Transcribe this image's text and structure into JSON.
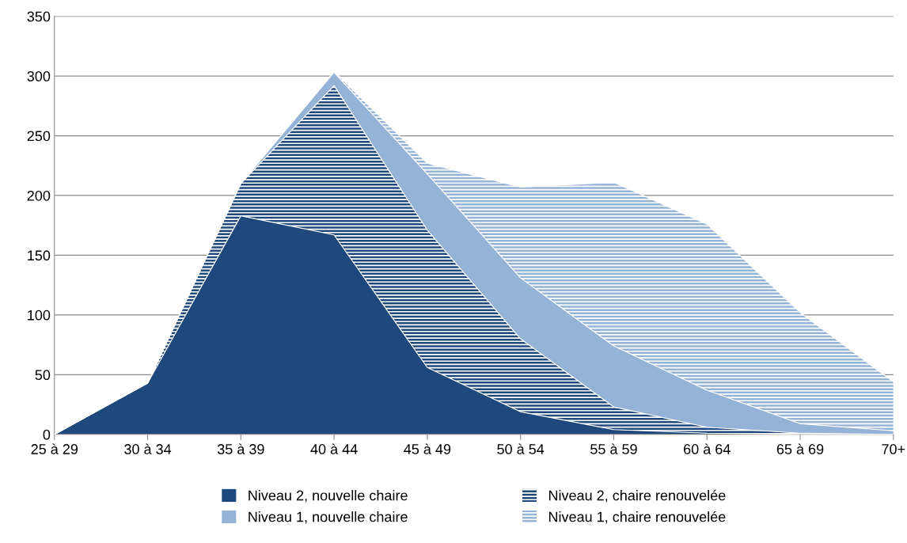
{
  "chart_data": {
    "type": "area",
    "stacked": true,
    "categories": [
      "25 à 29",
      "30 à 34",
      "35 à 39",
      "40 à 44",
      "45 à 49",
      "50 à 54",
      "55 à 59",
      "60 à 64",
      "65 à 69",
      "70+"
    ],
    "series": [
      {
        "name": "Niveau 2, nouvelle chaire",
        "color": "#1f497d",
        "values": [
          0,
          43,
          183,
          167,
          56,
          19,
          4,
          1,
          0,
          0
        ]
      },
      {
        "name": "Niveau 2, chaire renouvelée",
        "color": "#1f497d",
        "values": [
          0,
          0,
          27,
          125,
          115,
          61,
          19,
          5,
          1,
          0
        ]
      },
      {
        "name": "Niveau 1, nouvelle chaire",
        "color": "#95b3d7",
        "values": [
          0,
          0,
          0,
          11,
          47,
          51,
          51,
          31,
          8,
          3
        ]
      },
      {
        "name": "Niveau 1, chaire renouvelée",
        "color": "#95b3d7",
        "values": [
          0,
          0,
          0,
          1,
          9,
          76,
          137,
          139,
          93,
          41
        ]
      }
    ],
    "ylim": [
      0,
      350
    ],
    "yticks": [
      0,
      50,
      100,
      150,
      200,
      250,
      300,
      350
    ],
    "grid": "y",
    "legend": "bottom"
  }
}
